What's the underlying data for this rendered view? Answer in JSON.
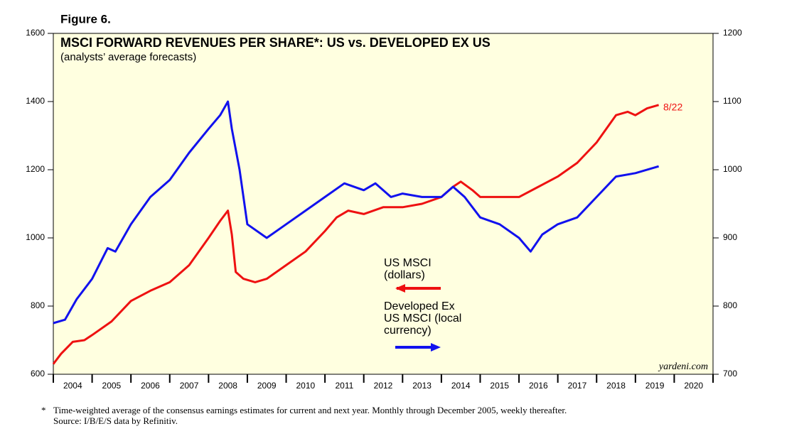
{
  "chart_data": {
    "type": "line",
    "figure_label": "Figure 6.",
    "title": "MSCI FORWARD REVENUES PER SHARE*: US vs. DEVELOPED EX US",
    "subtitle": "(analysts’ average forecasts)",
    "annotation": "8/22",
    "source_tag": "yardeni.com",
    "footnote_marker": "*",
    "footnote": [
      "Time-weighted average of the consensus earnings estimates for current and next year. Monthly through December 2005, weekly thereafter.",
      "Source: I/B/E/S data by Refinitiv."
    ],
    "xlim": [
      2004,
      2021
    ],
    "xticks": [
      2004,
      2005,
      2006,
      2007,
      2008,
      2009,
      2010,
      2011,
      2012,
      2013,
      2014,
      2015,
      2016,
      2017,
      2018,
      2019,
      2020
    ],
    "ylim": [
      600,
      1600
    ],
    "yticks": [
      600,
      800,
      1000,
      1200,
      1400,
      1600
    ],
    "y2lim": [
      700,
      1200
    ],
    "y2ticks": [
      700,
      800,
      900,
      1000,
      1100,
      1200
    ],
    "series": [
      {
        "name": "US MSCI (dollars)",
        "color": "#ee1111",
        "axis": "y",
        "x": [
          2004.0,
          2004.2,
          2004.5,
          2004.8,
          2005.0,
          2005.5,
          2006.0,
          2006.5,
          2007.0,
          2007.5,
          2008.0,
          2008.3,
          2008.5,
          2008.6,
          2008.7,
          2008.9,
          2009.2,
          2009.5,
          2010.0,
          2010.5,
          2011.0,
          2011.3,
          2011.6,
          2012.0,
          2012.5,
          2013.0,
          2013.5,
          2014.0,
          2014.3,
          2014.5,
          2014.8,
          2015.0,
          2015.5,
          2016.0,
          2016.5,
          2017.0,
          2017.5,
          2018.0,
          2018.5,
          2018.8,
          2019.0,
          2019.3,
          2019.6
        ],
        "values": [
          630,
          660,
          695,
          700,
          715,
          755,
          815,
          845,
          870,
          920,
          1000,
          1050,
          1080,
          1010,
          900,
          880,
          870,
          880,
          920,
          960,
          1020,
          1060,
          1080,
          1070,
          1090,
          1090,
          1100,
          1120,
          1150,
          1165,
          1140,
          1120,
          1120,
          1120,
          1150,
          1180,
          1220,
          1280,
          1360,
          1370,
          1360,
          1380,
          1390
        ]
      },
      {
        "name": "Developed Ex US MSCI (local currency)",
        "color": "#1111ee",
        "axis": "y2",
        "x": [
          2004.0,
          2004.3,
          2004.6,
          2005.0,
          2005.4,
          2005.6,
          2006.0,
          2006.5,
          2007.0,
          2007.5,
          2008.0,
          2008.3,
          2008.5,
          2008.6,
          2008.8,
          2009.0,
          2009.5,
          2010.0,
          2010.5,
          2011.0,
          2011.5,
          2012.0,
          2012.3,
          2012.7,
          2013.0,
          2013.5,
          2014.0,
          2014.3,
          2014.6,
          2015.0,
          2015.5,
          2016.0,
          2016.3,
          2016.6,
          2017.0,
          2017.5,
          2018.0,
          2018.5,
          2019.0,
          2019.6
        ],
        "values": [
          775,
          780,
          810,
          840,
          885,
          880,
          920,
          960,
          985,
          1025,
          1060,
          1080,
          1100,
          1060,
          1000,
          920,
          900,
          920,
          940,
          960,
          980,
          970,
          980,
          960,
          965,
          960,
          960,
          975,
          960,
          930,
          920,
          900,
          880,
          905,
          920,
          930,
          960,
          990,
          995,
          1005
        ]
      }
    ]
  }
}
